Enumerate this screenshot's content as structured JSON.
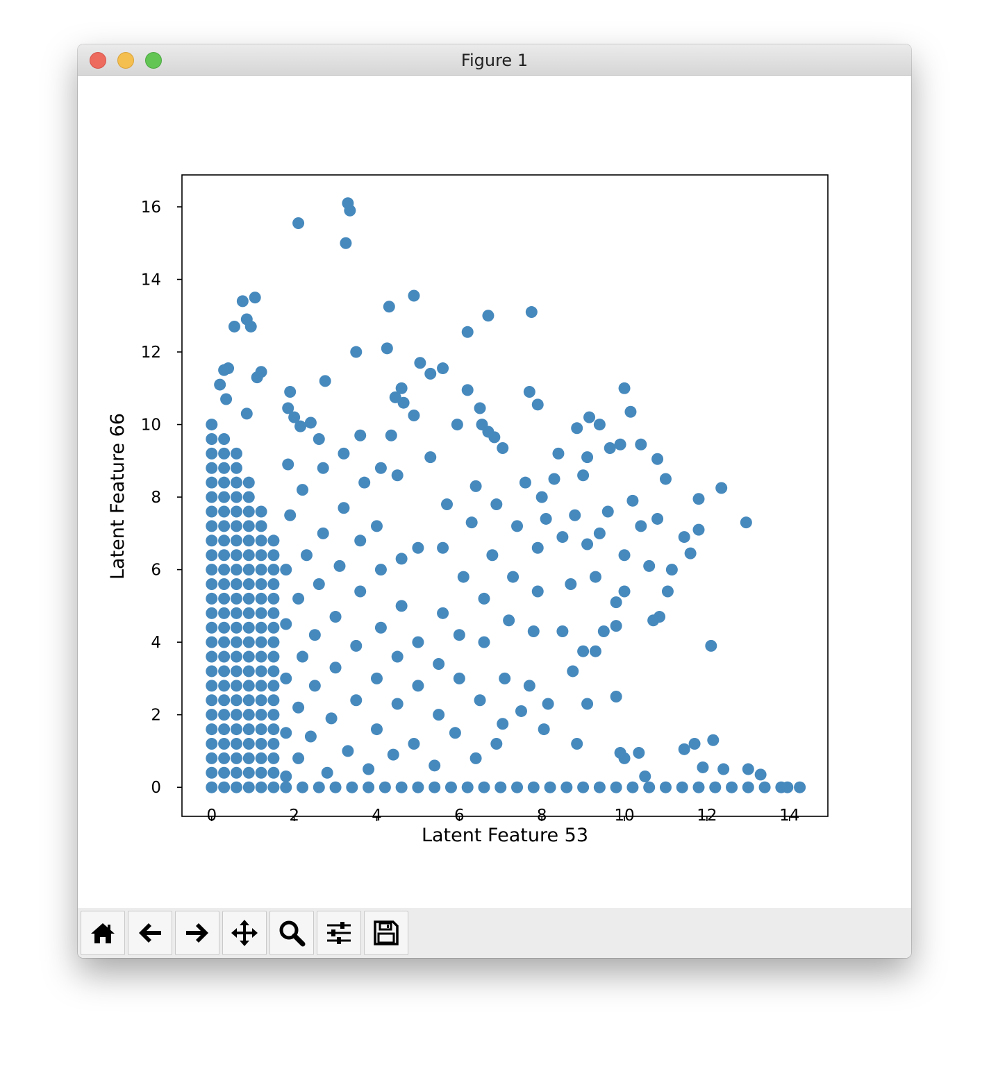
{
  "window": {
    "title": "Figure 1"
  },
  "chart_data": {
    "type": "scatter",
    "xlabel": "Latent Feature 53",
    "ylabel": "Latent Feature 66",
    "color": "#4689bd",
    "xlim": [
      -0.72,
      14.93
    ],
    "ylim": [
      -0.8,
      16.88
    ],
    "xticks": [
      0,
      2,
      4,
      6,
      8,
      10,
      12,
      14
    ],
    "yticks": [
      0,
      2,
      4,
      6,
      8,
      10,
      12,
      14,
      16
    ],
    "grid": false,
    "x": [
      0,
      0,
      0,
      0,
      0,
      0,
      0,
      0,
      0,
      0,
      0,
      0,
      0,
      0,
      0,
      0,
      0,
      0,
      0,
      0,
      0,
      0,
      0,
      0,
      0,
      0,
      0.3,
      0.3,
      0.3,
      0.3,
      0.3,
      0.3,
      0.3,
      0.3,
      0.3,
      0.3,
      0.3,
      0.3,
      0.3,
      0.3,
      0.3,
      0.3,
      0.3,
      0.3,
      0.3,
      0.3,
      0.3,
      0.3,
      0.3,
      0.3,
      0.3,
      0.6,
      0.6,
      0.6,
      0.6,
      0.6,
      0.6,
      0.6,
      0.6,
      0.6,
      0.6,
      0.6,
      0.6,
      0.6,
      0.6,
      0.6,
      0.6,
      0.6,
      0.6,
      0.6,
      0.6,
      0.6,
      0.6,
      0.6,
      0.6,
      0.9,
      0.9,
      0.9,
      0.9,
      0.9,
      0.9,
      0.9,
      0.9,
      0.9,
      0.9,
      0.9,
      0.9,
      0.9,
      0.9,
      0.9,
      0.9,
      0.9,
      0.9,
      0.9,
      0.9,
      0.9,
      0.9,
      1.2,
      1.2,
      1.2,
      1.2,
      1.2,
      1.2,
      1.2,
      1.2,
      1.2,
      1.2,
      1.2,
      1.2,
      1.2,
      1.2,
      1.2,
      1.2,
      1.2,
      1.2,
      1.2,
      1.2,
      1.5,
      1.5,
      1.5,
      1.5,
      1.5,
      1.5,
      1.5,
      1.5,
      1.5,
      1.5,
      1.5,
      1.5,
      1.5,
      1.5,
      1.5,
      1.5,
      1.5,
      1.5,
      1.8,
      1.8,
      1.8,
      1.8,
      1.8,
      1.9,
      1.85,
      2.1,
      2.1,
      2.2,
      2.1,
      2.3,
      2.2,
      2.4,
      2.5,
      2.5,
      2.6,
      2.7,
      2.7,
      2.8,
      2.9,
      3.0,
      3.0,
      3.1,
      3.2,
      3.2,
      3.3,
      3.5,
      3.5,
      3.6,
      3.6,
      3.7,
      3.8,
      4.0,
      4.0,
      4.1,
      4.1,
      4.0,
      4.1,
      4.4,
      4.5,
      4.5,
      4.6,
      4.6,
      4.5,
      4.9,
      5.0,
      5.0,
      5.0,
      5.3,
      5.4,
      5.5,
      5.5,
      5.6,
      5.6,
      5.7,
      5.9,
      6.0,
      6.0,
      6.1,
      6.3,
      6.4,
      6.4,
      6.5,
      6.6,
      6.6,
      6.8,
      6.9,
      6.9,
      7.1,
      7.2,
      7.3,
      7.4,
      7.6,
      7.7,
      7.8,
      7.9,
      7.9,
      8.1,
      8.3,
      8.5,
      8.5,
      8.7,
      8.8,
      9.0,
      9.1,
      9.3,
      9.4,
      9.6,
      9.8,
      10.0,
      10.2,
      10.4,
      10.6,
      10.8,
      11.0,
      10.0,
      9.5,
      9.1,
      8.4,
      8.0,
      1.8,
      2.2,
      2.6,
      3.0,
      3.4,
      3.8,
      4.2,
      4.6,
      5.0,
      5.4,
      5.8,
      6.2,
      6.6,
      7.0,
      7.4,
      7.8,
      8.2,
      8.6,
      9.0,
      9.4,
      9.8,
      10.2,
      10.6,
      11.0,
      11.4,
      11.8,
      12.2,
      12.6,
      13.0,
      13.4,
      13.8,
      13.95,
      14.25,
      3.3,
      3.35,
      2.1,
      3.25,
      4.9,
      4.3,
      7.75,
      6.7,
      1.05,
      0.75,
      0.85,
      0.95,
      0.55,
      6.2,
      4.25,
      3.5,
      5.05,
      5.6,
      5.3,
      1.2,
      1.1,
      0.4,
      0.3,
      0.2,
      2.75,
      10.0,
      7.7,
      6.2,
      4.6,
      4.45,
      4.65,
      1.9,
      0.35,
      7.9,
      6.5,
      10.15,
      1.85,
      4.9,
      9.15,
      0.85,
      9.4,
      5.95,
      6.55,
      2.0,
      2.4,
      2.15,
      8.85,
      6.7,
      6.85,
      7.05,
      9.9,
      10.4,
      9.65,
      10.8,
      13.3,
      13.0,
      12.4,
      11.9,
      12.15,
      11.7,
      11.45,
      12.1,
      12.95,
      12.35,
      11.8,
      11.8,
      11.6,
      11.45,
      11.15,
      11.05,
      10.7,
      10.85,
      9.8,
      9.8,
      9.1,
      8.75,
      9.3,
      9.0,
      7.05,
      7.5,
      8.15,
      8.05,
      8.85,
      10.0,
      9.9,
      10.35,
      10.5,
      3.6,
      4.35,
      2.6
    ],
    "values": [
      0,
      0.4,
      0.8,
      1.2,
      1.6,
      2,
      2.4,
      2.8,
      3.2,
      3.6,
      4,
      4.4,
      4.8,
      5.2,
      5.6,
      6,
      6.4,
      6.8,
      7.2,
      7.6,
      8,
      8.4,
      8.8,
      9.2,
      9.6,
      10,
      0,
      0.4,
      0.8,
      1.2,
      1.6,
      2,
      2.4,
      2.8,
      3.2,
      3.6,
      4,
      4.4,
      4.8,
      5.2,
      5.6,
      6,
      6.4,
      6.8,
      7.2,
      7.6,
      8,
      8.4,
      8.8,
      9.2,
      9.6,
      0,
      0.4,
      0.8,
      1.2,
      1.6,
      2,
      2.4,
      2.8,
      3.2,
      3.6,
      4,
      4.4,
      4.8,
      5.2,
      5.6,
      6,
      6.4,
      6.8,
      7.2,
      7.6,
      8,
      8.4,
      8.8,
      9.2,
      0,
      0.4,
      0.8,
      1.2,
      1.6,
      2,
      2.4,
      2.8,
      3.2,
      3.6,
      4,
      4.4,
      4.8,
      5.2,
      5.6,
      6,
      6.4,
      6.8,
      7.2,
      7.6,
      8,
      8.4,
      0,
      0.4,
      0.8,
      1.2,
      1.6,
      2,
      2.4,
      2.8,
      3.2,
      3.6,
      4,
      4.4,
      4.8,
      5.2,
      5.6,
      6,
      6.4,
      6.8,
      7.2,
      7.6,
      0,
      0.4,
      0.8,
      1.2,
      1.6,
      2,
      2.4,
      2.8,
      3.2,
      3.6,
      4,
      4.4,
      4.8,
      5.2,
      5.6,
      6,
      6.4,
      6.8,
      0.3,
      1.5,
      3,
      4.5,
      6,
      7.5,
      8.9,
      0.8,
      2.2,
      3.6,
      5.2,
      6.4,
      8.2,
      1.4,
      2.8,
      4.2,
      5.6,
      7.0,
      8.8,
      0.4,
      1.9,
      3.3,
      4.7,
      6.1,
      7.7,
      9.2,
      1.0,
      2.4,
      3.9,
      5.4,
      6.8,
      8.4,
      0.5,
      1.6,
      3.0,
      4.4,
      6.0,
      7.2,
      8.8,
      0.9,
      2.3,
      3.6,
      5.0,
      6.3,
      8.6,
      1.2,
      2.8,
      4.0,
      6.6,
      9.1,
      0.6,
      2.0,
      3.4,
      4.8,
      6.6,
      7.8,
      1.5,
      3.0,
      4.2,
      5.8,
      7.3,
      8.3,
      0.8,
      2.4,
      4.0,
      5.2,
      6.4,
      7.8,
      1.2,
      3.0,
      4.6,
      5.8,
      7.2,
      8.4,
      2.8,
      4.3,
      5.4,
      6.6,
      7.4,
      8.5,
      4.3,
      6.9,
      5.6,
      7.5,
      8.6,
      6.7,
      5.8,
      7.0,
      7.6,
      5.1,
      6.4,
      7.9,
      7.2,
      6.1,
      7.4,
      8.5,
      5.4,
      4.3,
      9.1,
      9.2,
      8.0,
      0,
      0,
      0,
      0,
      0,
      0,
      0,
      0,
      0,
      0,
      0,
      0,
      0,
      0,
      0,
      0,
      0,
      0,
      0,
      0,
      0,
      0,
      0,
      0,
      0,
      0,
      0,
      0,
      0,
      0,
      0,
      0,
      0,
      16.1,
      15.9,
      15.55,
      15.0,
      13.55,
      13.25,
      13.1,
      13.0,
      13.5,
      13.4,
      12.9,
      12.7,
      12.7,
      12.55,
      12.1,
      12.0,
      11.7,
      11.55,
      11.4,
      11.45,
      11.3,
      11.55,
      11.5,
      11.1,
      11.2,
      11.0,
      10.9,
      10.95,
      11.0,
      10.75,
      10.6,
      10.9,
      10.7,
      10.55,
      10.45,
      10.35,
      10.45,
      10.25,
      10.2,
      10.3,
      10.0,
      10.0,
      10.0,
      10.2,
      10.05,
      9.95,
      9.9,
      9.8,
      9.65,
      9.35,
      9.45,
      9.45,
      9.35,
      9.05,
      0.35,
      0.5,
      0.5,
      0.55,
      1.3,
      1.2,
      1.05,
      3.9,
      7.3,
      8.25,
      7.95,
      7.1,
      6.45,
      6.9,
      6.0,
      5.4,
      4.6,
      4.7,
      4.45,
      2.5,
      2.3,
      3.2,
      3.75,
      3.75,
      1.75,
      2.1,
      2.3,
      1.6,
      1.2,
      0.8,
      0.95,
      0.95,
      0.3,
      9.7,
      9.7,
      9.6
    ]
  }
}
